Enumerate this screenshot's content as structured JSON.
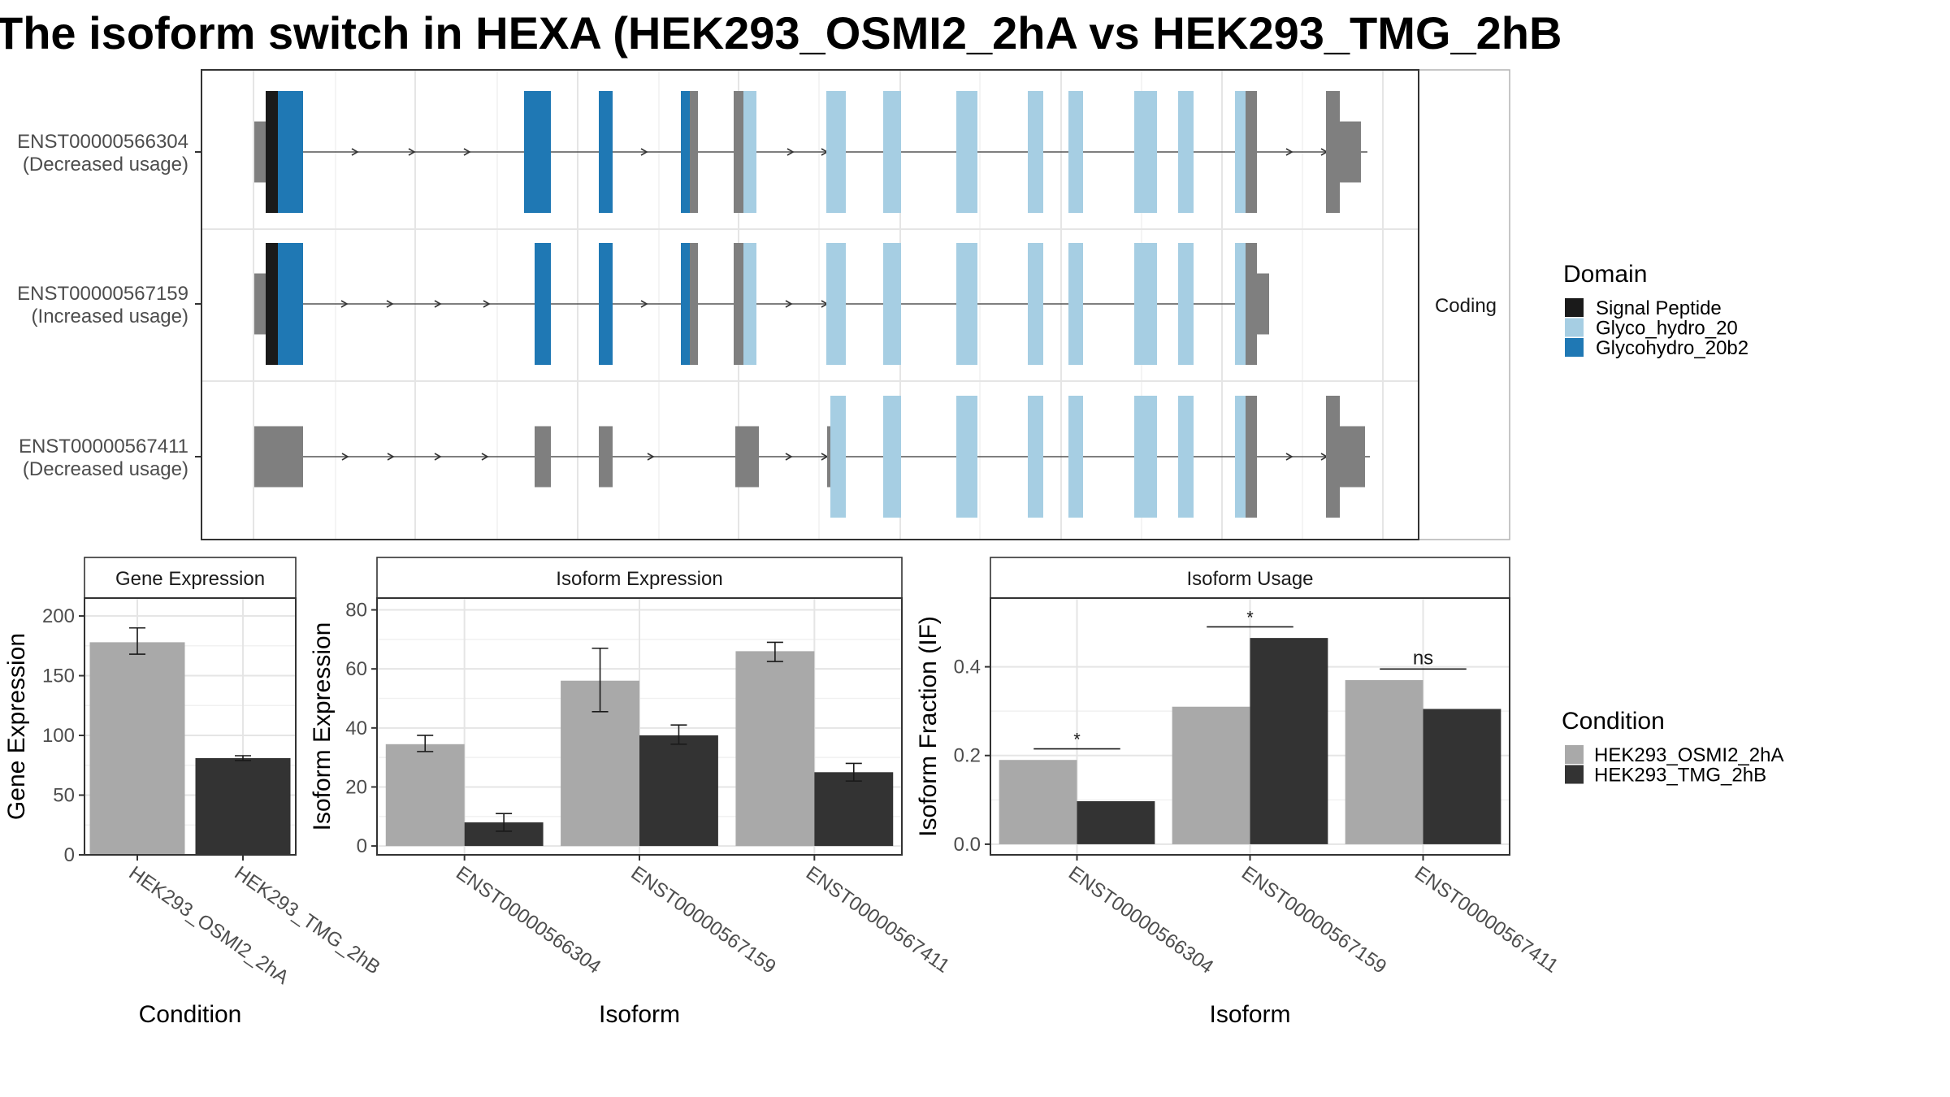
{
  "title": "The isoform switch in HEXA (HEK293_OSMI2_2hA vs HEK293_TMG_2hB",
  "chart_data": [
    {
      "type": "gene_structure",
      "facet_label": "Coding",
      "legend_title": "Domain",
      "domains": [
        {
          "name": "Signal Peptide",
          "color": "#1a1a1a"
        },
        {
          "name": "Glyco_hydro_20",
          "color": "#a6cee3"
        },
        {
          "name": "Glycohydro_20b2",
          "color": "#1f78b4"
        }
      ],
      "isoforms": [
        {
          "id": "ENST00000566304",
          "usage": "(Decreased usage)"
        },
        {
          "id": "ENST00000567159",
          "usage": "(Increased usage)"
        },
        {
          "id": "ENST00000567411",
          "usage": "(Decreased usage)"
        }
      ]
    },
    {
      "type": "bar",
      "title": "Gene Expression",
      "xlabel": "Condition",
      "ylabel": "Gene Expression",
      "ylim": [
        0,
        215
      ],
      "yticks": [
        0,
        50,
        100,
        150,
        200
      ],
      "categories": [
        "HEK293_OSMI2_2hA",
        "HEK293_TMG_2hB"
      ],
      "values": [
        178,
        81
      ],
      "errors": [
        [
          168,
          190
        ],
        [
          79,
          83
        ]
      ],
      "colors": [
        "#a9a9a9",
        "#333333"
      ]
    },
    {
      "type": "bar",
      "title": "Isoform Expression",
      "xlabel": "Isoform",
      "ylabel": "Isoform Expression",
      "ylim": [
        -3,
        84
      ],
      "yticks": [
        0,
        20,
        40,
        60,
        80
      ],
      "categories": [
        "ENST00000566304",
        "ENST00000567159",
        "ENST00000567411"
      ],
      "series": [
        {
          "name": "HEK293_OSMI2_2hA",
          "values": [
            34.5,
            56,
            66
          ],
          "errors": [
            [
              32,
              37.5
            ],
            [
              45.5,
              67
            ],
            [
              62.5,
              69
            ]
          ]
        },
        {
          "name": "HEK293_TMG_2hB",
          "values": [
            8,
            37.5,
            25
          ],
          "errors": [
            [
              5,
              11
            ],
            [
              34.5,
              41
            ],
            [
              22,
              28
            ]
          ]
        }
      ]
    },
    {
      "type": "bar",
      "title": "Isoform Usage",
      "xlabel": "Isoform",
      "ylabel": "Isoform Fraction (IF)",
      "ylim": [
        -0.024,
        0.555
      ],
      "yticks": [
        0.0,
        0.2,
        0.4
      ],
      "categories": [
        "ENST00000566304",
        "ENST00000567159",
        "ENST00000567411"
      ],
      "series": [
        {
          "name": "HEK293_OSMI2_2hA",
          "values": [
            0.19,
            0.31,
            0.37
          ]
        },
        {
          "name": "HEK293_TMG_2hB",
          "values": [
            0.097,
            0.465,
            0.305
          ]
        }
      ],
      "significance": [
        "*",
        "*",
        "ns"
      ]
    }
  ],
  "condition_legend": {
    "title": "Condition",
    "items": [
      {
        "name": "HEK293_OSMI2_2hA",
        "color": "#a9a9a9"
      },
      {
        "name": "HEK293_TMG_2hB",
        "color": "#333333"
      }
    ]
  }
}
